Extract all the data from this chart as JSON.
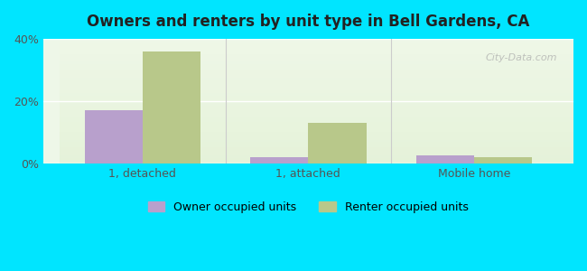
{
  "title": "Owners and renters by unit type in Bell Gardens, CA",
  "categories": [
    "1, detached",
    "1, attached",
    "Mobile home"
  ],
  "owner_values": [
    17.0,
    2.0,
    2.5
  ],
  "renter_values": [
    36.0,
    13.0,
    2.0
  ],
  "owner_color": "#b8a0cc",
  "renter_color": "#b8c88a",
  "ylim": [
    0,
    40
  ],
  "yticks": [
    0,
    20,
    40
  ],
  "ytick_labels": [
    "0%",
    "20%",
    "40%"
  ],
  "background_color_top": "#e8f5e0",
  "background_color_bottom": "#f5fff0",
  "outer_background": "#00e5ff",
  "bar_width": 0.35,
  "legend_owner": "Owner occupied units",
  "legend_renter": "Renter occupied units",
  "watermark": "City-Data.com"
}
